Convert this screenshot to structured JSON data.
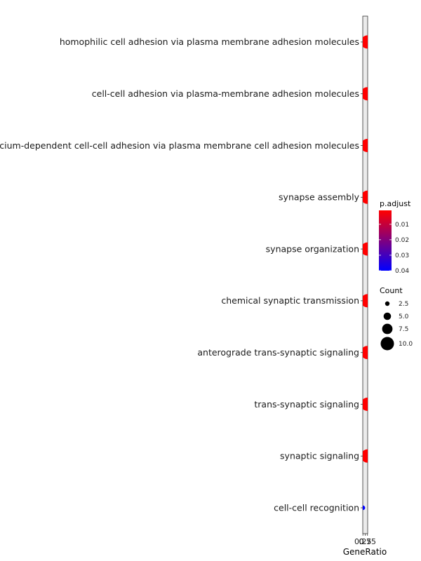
{
  "chart_data": {
    "type": "scatter",
    "subtype": "dotplot",
    "xlabel": "GeneRatio",
    "ylabel": "",
    "x_tick_labels": [
      "0.25",
      "0.5",
      "0.75"
    ],
    "categories": [
      "homophilic cell adhesion via plasma membrane adhesion molecules",
      "cell-cell adhesion via plasma-membrane adhesion molecules",
      "calcium-dependent cell-cell adhesion via plasma membrane cell adhesion molecules",
      "synapse assembly",
      "synapse organization",
      "chemical synaptic transmission",
      "anterograde trans-synaptic signaling",
      "trans-synaptic signaling",
      "synaptic signaling",
      "cell-cell recognition"
    ],
    "points": [
      {
        "term": "homophilic cell adhesion via plasma membrane adhesion molecules",
        "gene_ratio": 0.75,
        "count": 10,
        "p_adjust": 0.001
      },
      {
        "term": "cell-cell adhesion via plasma-membrane adhesion molecules",
        "gene_ratio": 0.75,
        "count": 10,
        "p_adjust": 0.001
      },
      {
        "term": "calcium-dependent cell-cell adhesion via plasma membrane cell adhesion molecules",
        "gene_ratio": 0.75,
        "count": 10,
        "p_adjust": 0.001
      },
      {
        "term": "synapse assembly",
        "gene_ratio": 0.75,
        "count": 10,
        "p_adjust": 0.001
      },
      {
        "term": "synapse organization",
        "gene_ratio": 0.75,
        "count": 10,
        "p_adjust": 0.001
      },
      {
        "term": "chemical synaptic transmission",
        "gene_ratio": 0.75,
        "count": 10,
        "p_adjust": 0.001
      },
      {
        "term": "anterograde trans-synaptic signaling",
        "gene_ratio": 0.75,
        "count": 10,
        "p_adjust": 0.001
      },
      {
        "term": "trans-synaptic signaling",
        "gene_ratio": 0.75,
        "count": 10,
        "p_adjust": 0.001
      },
      {
        "term": "synaptic signaling",
        "gene_ratio": 0.75,
        "count": 10,
        "p_adjust": 0.001
      },
      {
        "term": "cell-cell recognition",
        "gene_ratio": 0.25,
        "count": 2.5,
        "p_adjust": 0.04
      }
    ],
    "legend_color": {
      "title": "p.adjust",
      "labels": [
        "0.01",
        "0.02",
        "0.03",
        "0.04"
      ],
      "low_color": "#ff0000",
      "high_color": "#0000ff"
    },
    "legend_size": {
      "title": "Count",
      "labels": [
        "2.5",
        "5.0",
        "7.5",
        "10.0"
      ]
    },
    "legend_position": "right",
    "grid": true
  }
}
